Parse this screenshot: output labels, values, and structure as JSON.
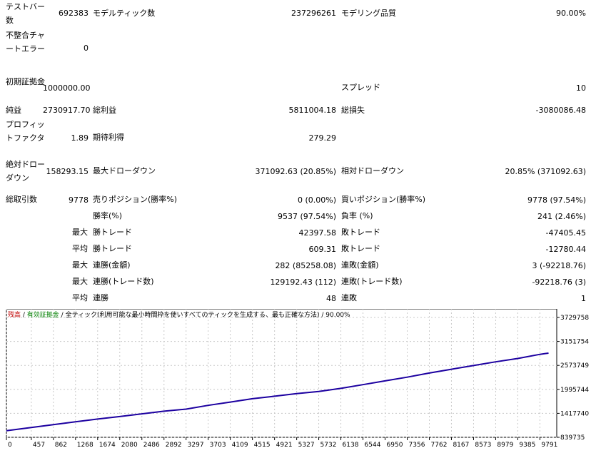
{
  "report": {
    "bars_label": "テストバー数",
    "bars_value": "692383",
    "ticks_label": "モデルティック数",
    "ticks_value": "237296261",
    "quality_label": "モデリング品質",
    "quality_value": "90.00%",
    "mismatch_label": "不整合チャートエラー",
    "mismatch_value": "0",
    "deposit_label": "初期証拠金",
    "deposit_value": "1000000.00",
    "spread_label": "スプレッド",
    "spread_value": "10",
    "net_label": "純益",
    "net_value": "2730917.70",
    "gross_profit_label": "総利益",
    "gross_profit_value": "5811004.18",
    "gross_loss_label": "総損失",
    "gross_loss_value": "-3080086.48",
    "pf_label": "プロフィットファクタ",
    "pf_value": "1.89",
    "expected_label": "期待利得",
    "expected_value": "279.29",
    "abs_dd_label": "絶対ドローダウン",
    "abs_dd_value": "158293.15",
    "max_dd_label": "最大ドローダウン",
    "max_dd_value": "371092.63 (20.85%)",
    "rel_dd_label": "相対ドローダウン",
    "rel_dd_value": "20.85% (371092.63)",
    "total_trades_label": "総取引数",
    "total_trades_value": "9778",
    "short_label": "売りポジション(勝率%)",
    "short_value": "0 (0.00%)",
    "long_label": "買いポジション(勝率%)",
    "long_value": "9778 (97.54%)",
    "win_label": "勝率(%)",
    "win_value": "9537 (97.54%)",
    "loss_label": "負率 (%)",
    "loss_value": "241 (2.46%)",
    "max1": "最大",
    "max_win_label": "勝トレード",
    "max_win_value": "42397.58",
    "max_loss_label": "敗トレード",
    "max_loss_value": "-47405.45",
    "avg1": "平均",
    "avg_win_label": "勝トレード",
    "avg_win_value": "609.31",
    "avg_loss_label": "敗トレード",
    "avg_loss_value": "-12780.44",
    "max2": "最大",
    "cons_win_amt_label": "連勝(金額)",
    "cons_win_amt_value": "282 (85258.08)",
    "cons_loss_amt_label": "連敗(金額)",
    "cons_loss_amt_value": "3 (-92218.76)",
    "max3": "最大",
    "cons_win_cnt_label": "連勝(トレード数)",
    "cons_win_cnt_value": "129192.43 (112)",
    "cons_loss_cnt_label": "連敗(トレード数)",
    "cons_loss_cnt_value": "-92218.76 (3)",
    "avg2": "平均",
    "avg_cons_win_label": "連勝",
    "avg_cons_win_value": "48",
    "avg_cons_loss_label": "連敗",
    "avg_cons_loss_value": "1"
  },
  "chart_legend": {
    "balance": "残高",
    "sep1": " / ",
    "equity": "有効証拠金",
    "sep2": " / ",
    "model": "全ティック(利用可能な最小時間枠を使いすべてのティックを生成する、最も正確な方法)",
    "sep3": " / ",
    "quality": "90.00%"
  },
  "chart_data": {
    "type": "line",
    "series": [
      {
        "values": [
          [
            0,
            1000000
          ],
          [
            457,
            1075000
          ],
          [
            862,
            1145000
          ],
          [
            1268,
            1215000
          ],
          [
            1674,
            1280000
          ],
          [
            2080,
            1340000
          ],
          [
            2486,
            1405000
          ],
          [
            2892,
            1470000
          ],
          [
            3297,
            1520000
          ],
          [
            3703,
            1610000
          ],
          [
            4109,
            1690000
          ],
          [
            4515,
            1770000
          ],
          [
            4921,
            1830000
          ],
          [
            5327,
            1895000
          ],
          [
            5732,
            1945000
          ],
          [
            6138,
            2020000
          ],
          [
            6544,
            2110000
          ],
          [
            6950,
            2200000
          ],
          [
            7356,
            2290000
          ],
          [
            7762,
            2390000
          ],
          [
            8167,
            2480000
          ],
          [
            8573,
            2570000
          ],
          [
            8979,
            2660000
          ],
          [
            9385,
            2740000
          ],
          [
            9791,
            2840000
          ],
          [
            9950,
            2870000
          ]
        ]
      }
    ],
    "x_ticks": [
      "0",
      "457",
      "862",
      "1268",
      "1674",
      "2080",
      "2486",
      "2892",
      "3297",
      "3703",
      "4109",
      "4515",
      "4921",
      "5327",
      "5732",
      "6138",
      "6544",
      "6950",
      "7356",
      "7762",
      "8167",
      "8573",
      "8979",
      "9385",
      "9791"
    ],
    "y_ticks": [
      "3729758",
      "3151754",
      "2573749",
      "1995744",
      "1417740",
      "839735"
    ],
    "ylim": [
      839735,
      3729758
    ],
    "xlim": [
      0,
      10100
    ],
    "colors": {
      "line": "#1c00a0",
      "grid": "#c8c8c8"
    }
  }
}
